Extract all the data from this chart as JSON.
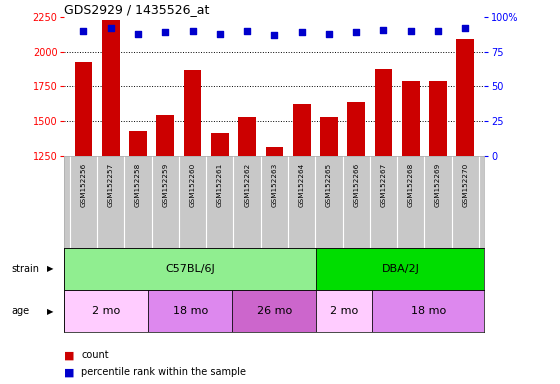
{
  "title": "GDS2929 / 1435526_at",
  "samples": [
    "GSM152256",
    "GSM152257",
    "GSM152258",
    "GSM152259",
    "GSM152260",
    "GSM152261",
    "GSM152262",
    "GSM152263",
    "GSM152264",
    "GSM152265",
    "GSM152266",
    "GSM152267",
    "GSM152268",
    "GSM152269",
    "GSM152270"
  ],
  "counts": [
    1930,
    2230,
    1430,
    1540,
    1870,
    1415,
    1530,
    1310,
    1620,
    1530,
    1640,
    1875,
    1790,
    1790,
    2090
  ],
  "percentile": [
    90,
    92,
    88,
    89,
    90,
    88,
    90,
    87,
    89,
    88,
    89,
    91,
    90,
    90,
    92
  ],
  "ylim_left": [
    1250,
    2250
  ],
  "yticks_left": [
    1250,
    1500,
    1750,
    2000,
    2250
  ],
  "yticks_right": [
    0,
    25,
    50,
    75,
    100
  ],
  "bar_color": "#cc0000",
  "dot_color": "#0000cc",
  "strain_groups": [
    {
      "label": "C57BL/6J",
      "start": 0,
      "end": 9,
      "color": "#90ee90"
    },
    {
      "label": "DBA/2J",
      "start": 9,
      "end": 15,
      "color": "#00dd00"
    }
  ],
  "age_groups": [
    {
      "label": "2 mo",
      "start": 0,
      "end": 3,
      "color": "#ffccff"
    },
    {
      "label": "18 mo",
      "start": 3,
      "end": 6,
      "color": "#dd88ee"
    },
    {
      "label": "26 mo",
      "start": 6,
      "end": 9,
      "color": "#cc66cc"
    },
    {
      "label": "2 mo",
      "start": 9,
      "end": 11,
      "color": "#ffccff"
    },
    {
      "label": "18 mo",
      "start": 11,
      "end": 15,
      "color": "#dd88ee"
    }
  ],
  "background_color": "#ffffff",
  "xlabels_bg": "#c8c8c8"
}
